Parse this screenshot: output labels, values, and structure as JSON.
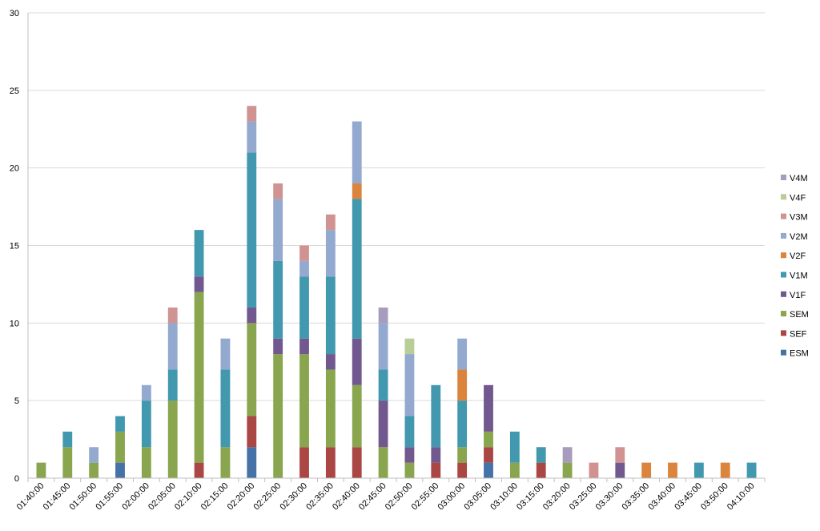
{
  "chart_data": {
    "type": "bar",
    "stacked": true,
    "grid": true,
    "legend_position": "right",
    "ylim": [
      0,
      30
    ],
    "yticks": [
      0,
      5,
      10,
      15,
      20,
      25,
      30
    ],
    "categories": [
      "01:40:00",
      "01:45:00",
      "01:50:00",
      "01:55:00",
      "02:00:00",
      "02:05:00",
      "02:10:00",
      "02:15:00",
      "02:20:00",
      "02:25:00",
      "02:30:00",
      "02:35:00",
      "02:40:00",
      "02:45:00",
      "02:50:00",
      "02:55:00",
      "03:00:00",
      "03:05:00",
      "03:10:00",
      "03:15:00",
      "03:20:00",
      "03:25:00",
      "03:30:00",
      "03:35:00",
      "03:40:00",
      "03:45:00",
      "03:50:00",
      "04:10:00"
    ],
    "series": [
      {
        "name": "ESM",
        "color": "#4572A7",
        "values": [
          0,
          0,
          0,
          1,
          0,
          0,
          0,
          0,
          2,
          0,
          0,
          0,
          0,
          0,
          0,
          0,
          0,
          1,
          0,
          0,
          0,
          0,
          0,
          0,
          0,
          0,
          0,
          0
        ]
      },
      {
        "name": "SEF",
        "color": "#AA4643",
        "values": [
          0,
          0,
          0,
          0,
          0,
          0,
          1,
          0,
          2,
          0,
          2,
          2,
          2,
          0,
          0,
          1,
          1,
          1,
          0,
          1,
          0,
          0,
          0,
          0,
          0,
          0,
          0,
          0
        ]
      },
      {
        "name": "SEM",
        "color": "#89A54E",
        "values": [
          1,
          2,
          1,
          2,
          2,
          5,
          11,
          2,
          6,
          8,
          6,
          5,
          4,
          2,
          1,
          0,
          1,
          1,
          1,
          0,
          1,
          0,
          0,
          0,
          0,
          0,
          0,
          0
        ]
      },
      {
        "name": "V1F",
        "color": "#71588F",
        "values": [
          0,
          0,
          0,
          0,
          0,
          0,
          1,
          0,
          1,
          1,
          1,
          1,
          3,
          3,
          1,
          1,
          0,
          3,
          0,
          0,
          0,
          0,
          1,
          0,
          0,
          0,
          0,
          0
        ]
      },
      {
        "name": "V1M",
        "color": "#4198AF",
        "values": [
          0,
          1,
          0,
          1,
          3,
          2,
          3,
          5,
          10,
          5,
          4,
          5,
          9,
          2,
          2,
          4,
          3,
          0,
          2,
          1,
          0,
          0,
          0,
          0,
          0,
          1,
          0,
          1
        ]
      },
      {
        "name": "V2F",
        "color": "#DB843D",
        "values": [
          0,
          0,
          0,
          0,
          0,
          0,
          0,
          0,
          0,
          0,
          0,
          0,
          1,
          0,
          0,
          0,
          2,
          0,
          0,
          0,
          0,
          0,
          0,
          1,
          1,
          0,
          1,
          0
        ]
      },
      {
        "name": "V2M",
        "color": "#93A9CF",
        "values": [
          0,
          0,
          1,
          0,
          1,
          3,
          0,
          2,
          2,
          4,
          1,
          3,
          4,
          3,
          4,
          0,
          2,
          0,
          0,
          0,
          0,
          0,
          0,
          0,
          0,
          0,
          0,
          0
        ]
      },
      {
        "name": "V3M",
        "color": "#D19392",
        "values": [
          0,
          0,
          0,
          0,
          0,
          1,
          0,
          0,
          1,
          1,
          1,
          1,
          0,
          0,
          0,
          0,
          0,
          0,
          0,
          0,
          0,
          1,
          1,
          0,
          0,
          0,
          0,
          0
        ]
      },
      {
        "name": "V4F",
        "color": "#B9CD96",
        "values": [
          0,
          0,
          0,
          0,
          0,
          0,
          0,
          0,
          0,
          0,
          0,
          0,
          0,
          0,
          1,
          0,
          0,
          0,
          0,
          0,
          0,
          0,
          0,
          0,
          0,
          0,
          0,
          0
        ]
      },
      {
        "name": "V4M",
        "color": "#A99BBD",
        "values": [
          0,
          0,
          0,
          0,
          0,
          0,
          0,
          0,
          0,
          0,
          0,
          0,
          0,
          1,
          0,
          0,
          0,
          0,
          0,
          0,
          1,
          0,
          0,
          0,
          0,
          0,
          0,
          0
        ]
      }
    ]
  }
}
